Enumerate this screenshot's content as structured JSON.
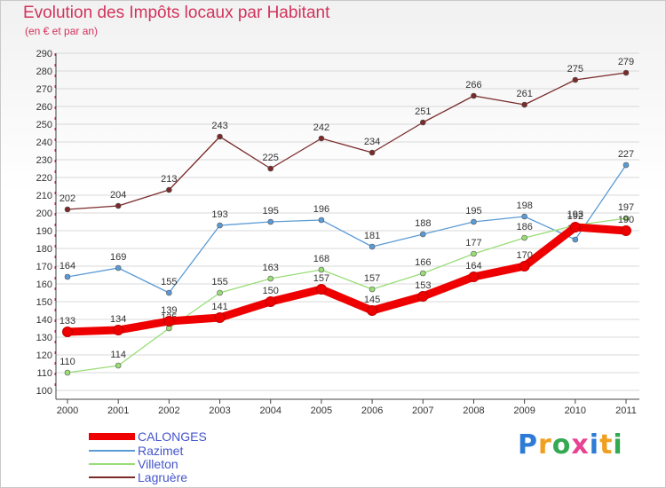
{
  "chart_data": {
    "type": "line",
    "title": "Evolution des Impôts locaux par Habitant",
    "subtitle": "(en € et par an)",
    "x": [
      "2000",
      "2001",
      "2002",
      "2003",
      "2004",
      "2005",
      "2006",
      "2007",
      "2008",
      "2009",
      "2010",
      "2011"
    ],
    "ylim": [
      100,
      290
    ],
    "yticks": [
      100,
      110,
      120,
      130,
      140,
      150,
      160,
      170,
      180,
      190,
      200,
      210,
      220,
      230,
      240,
      250,
      260,
      270,
      280,
      290
    ],
    "series": [
      {
        "name": "CALONGES",
        "color": "#ee0000",
        "values": [
          133,
          134,
          139,
          141,
          150,
          157,
          145,
          153,
          164,
          170,
          192,
          190
        ]
      },
      {
        "name": "Razimet",
        "color": "#5b9bd5",
        "values": [
          164,
          169,
          155,
          193,
          195,
          196,
          181,
          188,
          195,
          198,
          185,
          227
        ]
      },
      {
        "name": "Villeton",
        "color": "#99dd77",
        "values": [
          110,
          114,
          135,
          155,
          163,
          168,
          157,
          166,
          177,
          186,
          193,
          197
        ]
      },
      {
        "name": "Lagruère",
        "color": "#7a2a2a",
        "values": [
          202,
          204,
          213,
          243,
          225,
          242,
          234,
          251,
          266,
          261,
          275,
          279
        ]
      }
    ]
  },
  "brand": {
    "letters": [
      "P",
      "r",
      "o",
      "x",
      "i",
      "t",
      "i"
    ],
    "colors": [
      "#2e7bd6",
      "#f0a020",
      "#34a853",
      "#e84393",
      "#2e7bd6",
      "#f0a020",
      "#34a853"
    ]
  }
}
